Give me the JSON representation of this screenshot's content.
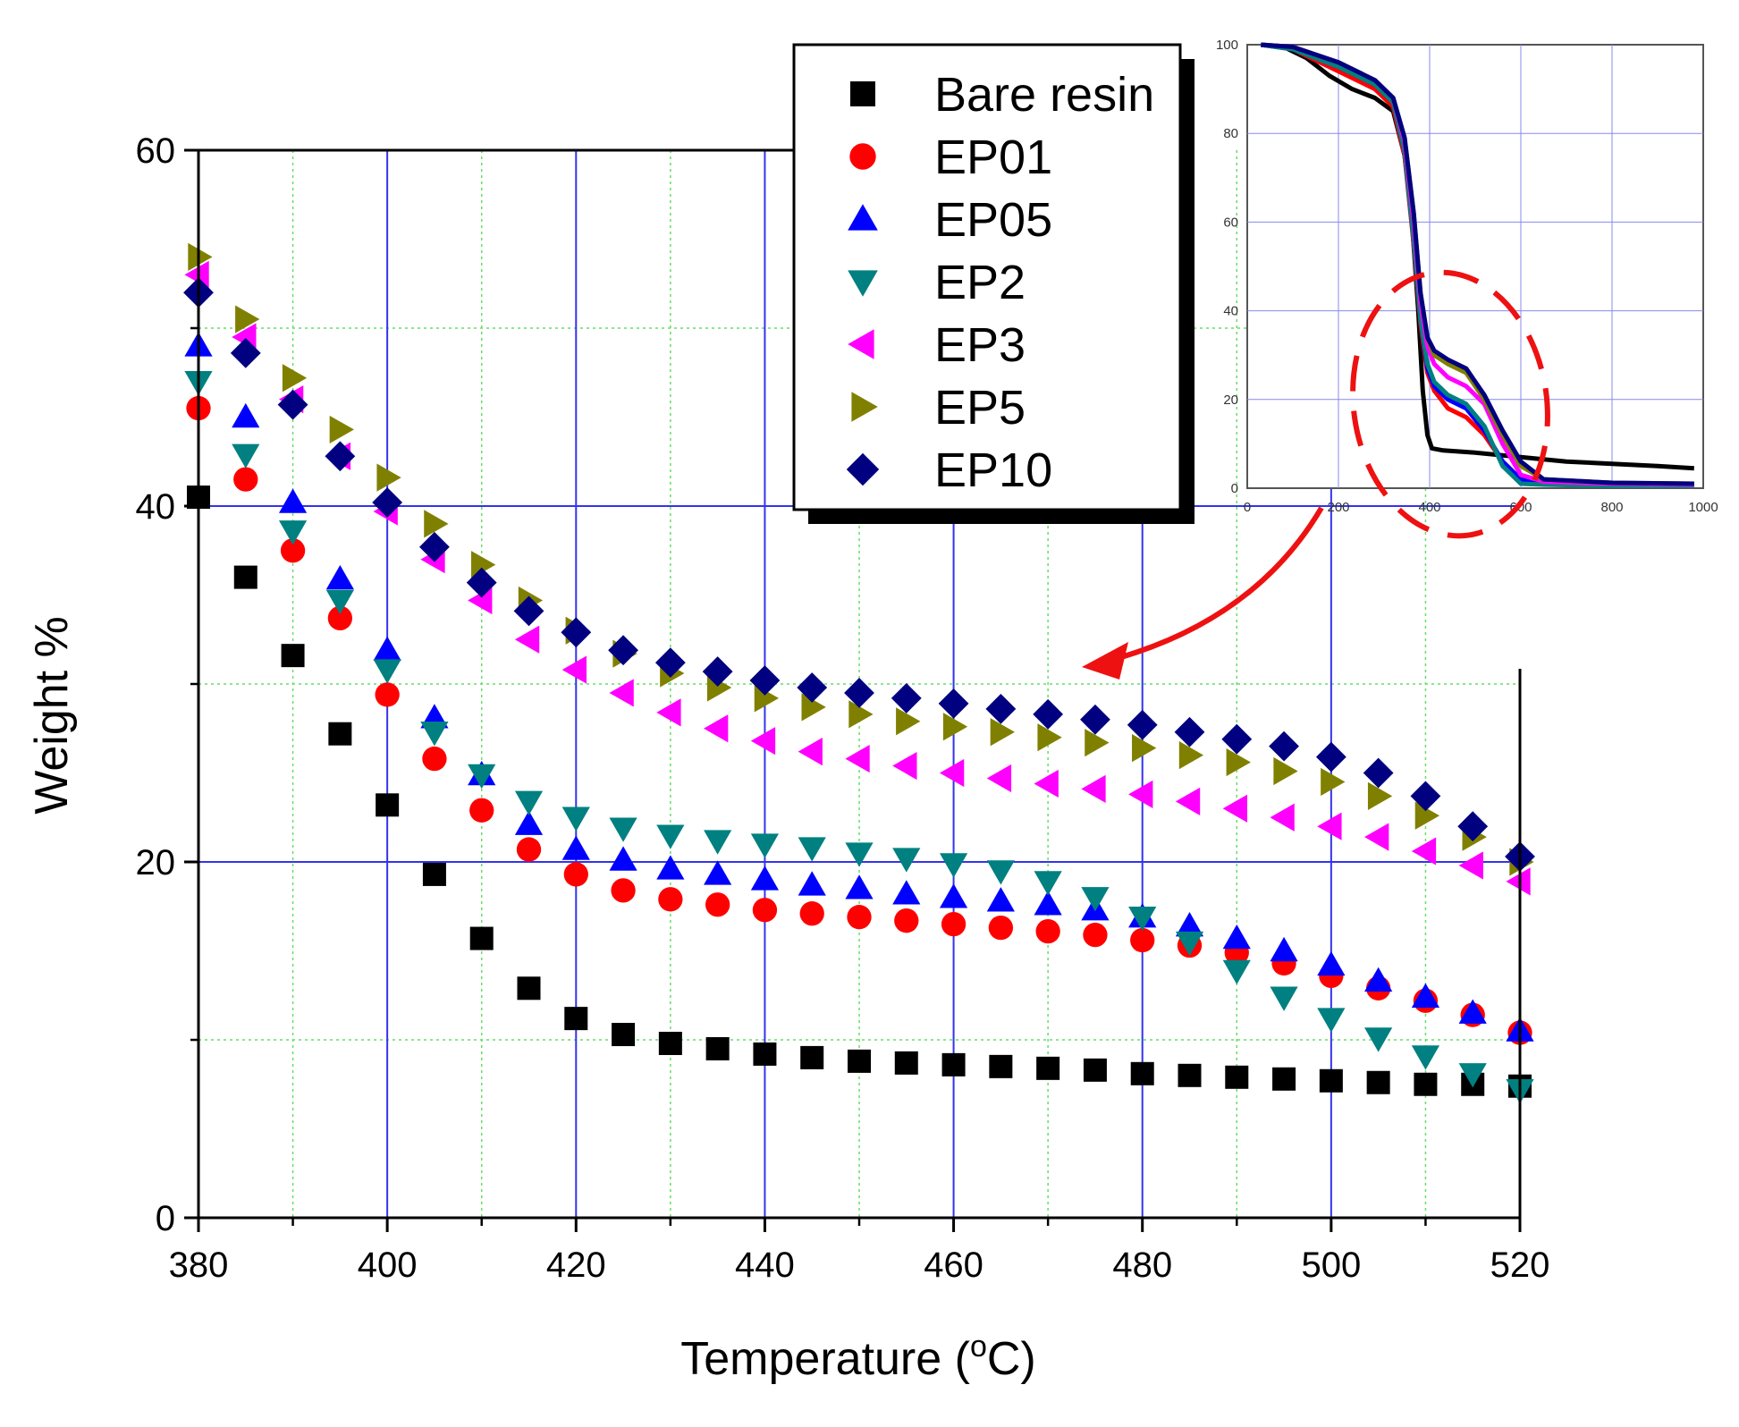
{
  "chart_data": {
    "main": {
      "type": "scatter",
      "title": "",
      "xlabel": "Temperature (°C)",
      "xlabel_parts": {
        "before": "Temperature (",
        "sup": "o",
        "after": "C)"
      },
      "ylabel": "Weight %",
      "xlim": [
        380,
        520
      ],
      "ylim": [
        0,
        60
      ],
      "xticks": [
        380,
        400,
        420,
        440,
        460,
        480,
        500,
        520
      ],
      "yticks": [
        0,
        20,
        40,
        60
      ],
      "x": [
        380,
        385,
        390,
        395,
        400,
        405,
        410,
        415,
        420,
        425,
        430,
        435,
        440,
        445,
        450,
        455,
        460,
        465,
        470,
        475,
        480,
        485,
        490,
        495,
        500,
        505,
        510,
        515,
        520
      ],
      "series": [
        {
          "name": "Bare resin",
          "marker": "square",
          "color": "#000000",
          "values": [
            40.5,
            36.0,
            31.6,
            27.2,
            23.2,
            19.3,
            15.7,
            12.9,
            11.2,
            10.3,
            9.8,
            9.5,
            9.2,
            9.0,
            8.8,
            8.7,
            8.6,
            8.5,
            8.4,
            8.3,
            8.1,
            8.0,
            7.9,
            7.8,
            7.7,
            7.6,
            7.5,
            7.5,
            7.4
          ]
        },
        {
          "name": "EP01",
          "marker": "circle",
          "color": "#ff0000",
          "values": [
            45.5,
            41.5,
            37.5,
            33.7,
            29.4,
            25.8,
            22.9,
            20.7,
            19.3,
            18.4,
            17.9,
            17.6,
            17.3,
            17.1,
            16.9,
            16.7,
            16.5,
            16.3,
            16.1,
            15.9,
            15.6,
            15.3,
            14.9,
            14.3,
            13.6,
            12.9,
            12.2,
            11.4,
            10.4
          ]
        },
        {
          "name": "EP05",
          "marker": "triangle-up",
          "color": "#0000ff",
          "values": [
            49.0,
            45.0,
            40.2,
            35.9,
            31.9,
            28.1,
            24.9,
            22.1,
            20.7,
            20.1,
            19.6,
            19.3,
            19.0,
            18.7,
            18.5,
            18.2,
            18.0,
            17.8,
            17.6,
            17.3,
            16.9,
            16.4,
            15.7,
            15.0,
            14.2,
            13.3,
            12.4,
            11.5,
            10.5
          ]
        },
        {
          "name": "EP2",
          "marker": "triangle-down",
          "color": "#008080",
          "values": [
            47.0,
            42.9,
            38.6,
            34.7,
            30.8,
            27.3,
            24.9,
            23.4,
            22.5,
            21.9,
            21.5,
            21.2,
            21.0,
            20.8,
            20.5,
            20.2,
            19.9,
            19.5,
            18.9,
            18.0,
            16.9,
            15.5,
            13.9,
            12.4,
            11.2,
            10.1,
            9.1,
            8.1,
            7.2
          ]
        },
        {
          "name": "EP3",
          "marker": "triangle-left",
          "color": "#ff00ff",
          "values": [
            53.0,
            49.5,
            46.0,
            42.8,
            39.7,
            37.0,
            34.7,
            32.5,
            30.8,
            29.5,
            28.4,
            27.5,
            26.8,
            26.2,
            25.8,
            25.4,
            25.0,
            24.7,
            24.4,
            24.1,
            23.8,
            23.4,
            23.0,
            22.5,
            22.0,
            21.4,
            20.6,
            19.8,
            18.9
          ]
        },
        {
          "name": "EP5",
          "marker": "triangle-right",
          "color": "#808000",
          "values": [
            54.0,
            50.5,
            47.2,
            44.3,
            41.6,
            39.0,
            36.7,
            34.7,
            33.0,
            31.7,
            30.6,
            29.8,
            29.2,
            28.7,
            28.3,
            27.9,
            27.6,
            27.3,
            27.0,
            26.7,
            26.4,
            26.0,
            25.6,
            25.1,
            24.5,
            23.7,
            22.6,
            21.4,
            20.0
          ]
        },
        {
          "name": "EP10",
          "marker": "diamond",
          "color": "#000080",
          "values": [
            52.0,
            48.6,
            45.7,
            42.8,
            40.2,
            37.7,
            35.7,
            34.1,
            32.9,
            31.9,
            31.2,
            30.7,
            30.2,
            29.8,
            29.5,
            29.2,
            28.9,
            28.6,
            28.3,
            28.0,
            27.7,
            27.3,
            26.9,
            26.5,
            25.9,
            25.0,
            23.7,
            22.0,
            20.3
          ]
        }
      ]
    },
    "inset": {
      "type": "line",
      "xlim": [
        0,
        1000
      ],
      "ylim": [
        0,
        100
      ],
      "xticks": [
        0,
        200,
        400,
        600,
        800,
        1000
      ],
      "yticks": [
        0,
        20,
        40,
        60,
        80,
        100
      ],
      "series": [
        {
          "name": "Bare resin",
          "color": "#000000",
          "x": [
            30,
            80,
            130,
            180,
            230,
            280,
            320,
            345,
            360,
            375,
            385,
            395,
            405,
            430,
            500,
            600,
            700,
            800,
            900,
            980
          ],
          "y": [
            100,
            99.5,
            97,
            93,
            90,
            88,
            85,
            75,
            62,
            40,
            22,
            12,
            9,
            8.5,
            8,
            7,
            6,
            5.5,
            5,
            4.5
          ]
        },
        {
          "name": "EP01",
          "color": "#ff0000",
          "x": [
            30,
            100,
            200,
            280,
            320,
            345,
            365,
            380,
            395,
            410,
            440,
            480,
            520,
            560,
            600,
            650,
            800,
            980
          ],
          "y": [
            100,
            99,
            94,
            90,
            86,
            75,
            55,
            37,
            26,
            22,
            18,
            16,
            12,
            6,
            2,
            1.5,
            1,
            0.8
          ]
        },
        {
          "name": "EP05",
          "color": "#0000ff",
          "x": [
            30,
            100,
            200,
            280,
            320,
            345,
            365,
            380,
            395,
            410,
            440,
            480,
            520,
            560,
            600,
            650,
            800,
            980
          ],
          "y": [
            100,
            99,
            95,
            91,
            87,
            76,
            56,
            38,
            27,
            23,
            20,
            18,
            13,
            6,
            2,
            1.5,
            1,
            0.8
          ]
        },
        {
          "name": "EP2",
          "color": "#008080",
          "x": [
            30,
            100,
            200,
            280,
            320,
            345,
            365,
            380,
            395,
            410,
            440,
            480,
            520,
            560,
            600,
            650,
            800,
            980
          ],
          "y": [
            100,
            99,
            95,
            91,
            87,
            76,
            56,
            38,
            28,
            24,
            21,
            19,
            14,
            5,
            1,
            0.8,
            0.5,
            0.5
          ]
        },
        {
          "name": "EP3",
          "color": "#ff00ff",
          "x": [
            30,
            100,
            200,
            280,
            320,
            345,
            365,
            380,
            395,
            410,
            440,
            480,
            520,
            560,
            600,
            650,
            800,
            980
          ],
          "y": [
            100,
            99.5,
            96,
            92,
            88,
            78,
            60,
            42,
            32,
            28,
            25,
            23,
            19,
            10,
            3,
            1.5,
            1,
            0.8
          ]
        },
        {
          "name": "EP5",
          "color": "#808000",
          "x": [
            30,
            100,
            200,
            280,
            320,
            345,
            365,
            380,
            395,
            410,
            440,
            480,
            520,
            560,
            600,
            650,
            800,
            980
          ],
          "y": [
            100,
            99.5,
            96,
            92,
            88,
            79,
            62,
            44,
            34,
            30,
            28,
            26,
            20,
            12,
            5,
            2,
            1.2,
            1
          ]
        },
        {
          "name": "EP10",
          "color": "#000080",
          "x": [
            30,
            100,
            200,
            280,
            320,
            345,
            365,
            380,
            395,
            410,
            440,
            480,
            520,
            560,
            600,
            650,
            800,
            980
          ],
          "y": [
            100,
            99.5,
            96,
            92,
            88,
            79,
            62,
            44,
            34,
            31,
            29,
            27,
            21,
            13,
            6,
            2,
            1.2,
            1
          ]
        }
      ]
    }
  }
}
